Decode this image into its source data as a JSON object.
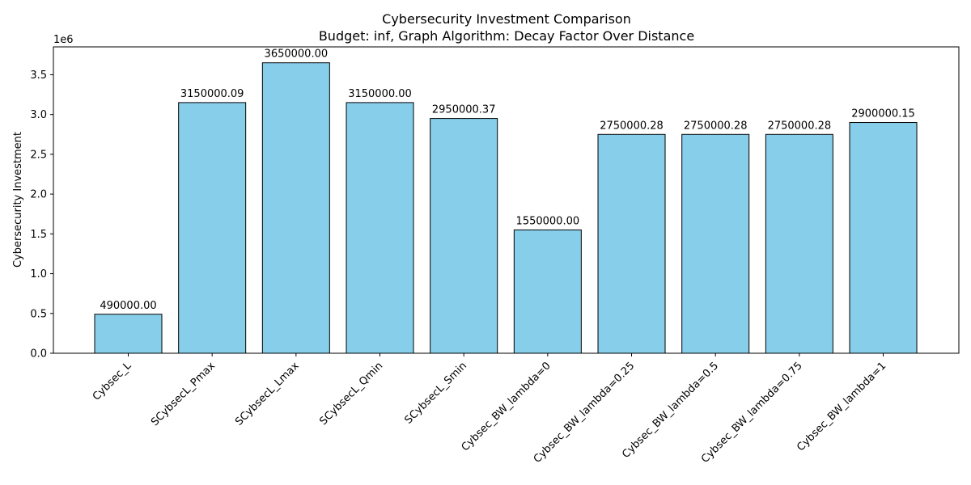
{
  "chart_data": {
    "type": "bar",
    "title": "Cybersecurity Investment Comparison",
    "subtitle": "Budget: inf, Graph Algorithm: Decay Factor Over Distance",
    "xlabel": "",
    "ylabel": "Cybersecurity Investment",
    "y_scale_label": "1e6",
    "ylim": [
      0,
      3850000
    ],
    "y_ticks": [
      0,
      500000,
      1000000,
      1500000,
      2000000,
      2500000,
      3000000,
      3500000
    ],
    "y_tick_labels": [
      "0.0",
      "0.5",
      "1.0",
      "1.5",
      "2.0",
      "2.5",
      "3.0",
      "3.5"
    ],
    "categories": [
      "Cybsec_L",
      "SCybsecL_Pmax",
      "SCybsecL_Lmax",
      "SCybsecL_Qmin",
      "SCybsecL_Smin",
      "Cybsec_BW_lambda=0",
      "Cybsec_BW_lambda=0.25",
      "Cybsec_BW_lambda=0.5",
      "Cybsec_BW_lambda=0.75",
      "Cybsec_BW_lambda=1"
    ],
    "values": [
      490000.0,
      3150000.09,
      3650000.0,
      3150000.0,
      2950000.37,
      1550000.0,
      2750000.28,
      2750000.28,
      2750000.28,
      2900000.15
    ],
    "data_labels": [
      "490000.00",
      "3150000.09",
      "3650000.00",
      "3150000.00",
      "2950000.37",
      "1550000.00",
      "2750000.28",
      "2750000.28",
      "2750000.28",
      "2900000.15"
    ],
    "bar_color": "#87ceeb",
    "edge_color": "#000000",
    "grid": false,
    "legend": "none"
  }
}
